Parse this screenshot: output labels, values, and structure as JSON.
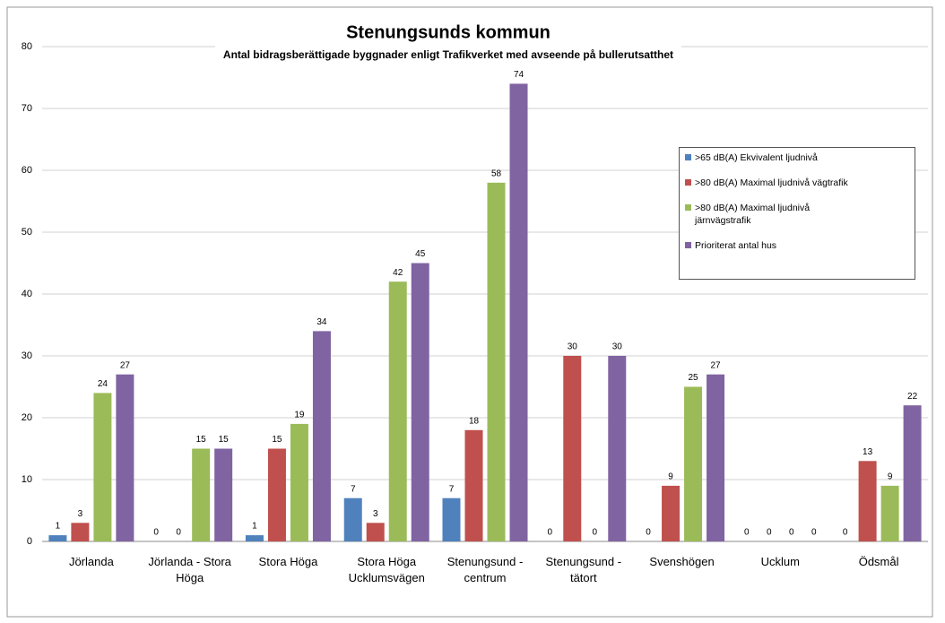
{
  "chart_data": {
    "type": "bar",
    "title": "Stenungsunds kommun",
    "subtitle": "Antal bidragsberättigade byggnader enligt Trafikverket med avseende på bullerutsatthet",
    "categories": [
      "Jörlanda",
      "Jörlanda - Stora\nHöga",
      "Stora Höga",
      "Stora Höga\nUcklumsvägen",
      "Stenungsund -\ncentrum",
      "Stenungsund -\ntätort",
      "Svenshögen",
      "Ucklum",
      "Ödsmål"
    ],
    "series": [
      {
        "name": ">65 dB(A) Ekvivalent ljudnivå",
        "color": "#4f81bd",
        "values": [
          1,
          0,
          1,
          7,
          7,
          0,
          0,
          0,
          0
        ]
      },
      {
        "name": ">80 dB(A) Maximal ljudnivå vägtrafik",
        "color": "#c0504d",
        "values": [
          3,
          0,
          15,
          3,
          18,
          30,
          9,
          0,
          13
        ]
      },
      {
        "name": ">80 dB(A) Maximal ljudnivå järnvägstrafik",
        "color": "#9bbb59",
        "values": [
          24,
          15,
          19,
          42,
          58,
          0,
          25,
          0,
          9
        ]
      },
      {
        "name": "Prioriterat antal hus",
        "color": "#8064a2",
        "values": [
          27,
          15,
          34,
          45,
          74,
          30,
          27,
          0,
          22
        ]
      }
    ],
    "ylim": [
      0,
      80
    ],
    "yticks": [
      0,
      10,
      20,
      30,
      40,
      50,
      60,
      70,
      80
    ],
    "grid": true,
    "legend": "right"
  }
}
